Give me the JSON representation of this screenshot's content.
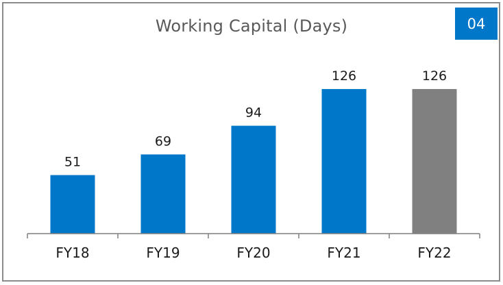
{
  "badge": "04",
  "colors": {
    "bar_primary": "#0077c8",
    "bar_highlight": "#808080",
    "axis": "#7f7f7f",
    "border": "#8c8c8c"
  },
  "chart_data": {
    "type": "bar",
    "title": "Working Capital (Days)",
    "categories": [
      "FY18",
      "FY19",
      "FY20",
      "FY21",
      "FY22"
    ],
    "values": [
      51,
      69,
      94,
      126,
      126
    ],
    "data_labels": [
      "51",
      "69",
      "94",
      "126",
      "126"
    ],
    "bar_colors": [
      "#0077c8",
      "#0077c8",
      "#0077c8",
      "#0077c8",
      "#808080"
    ],
    "ylim": [
      0,
      140
    ],
    "grid": false,
    "legend": "none",
    "xlabel": "",
    "ylabel": ""
  }
}
